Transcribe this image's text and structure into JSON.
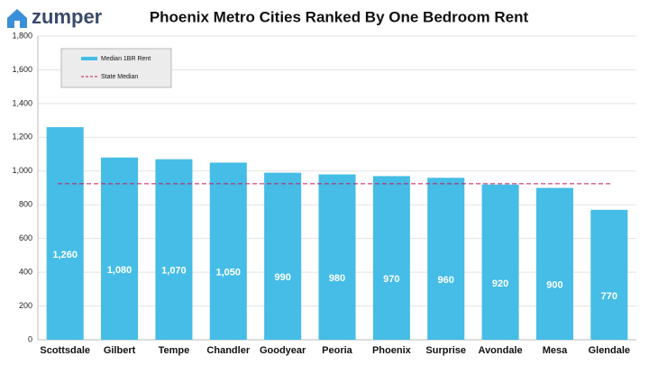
{
  "logo": "zumper",
  "chart_data": {
    "type": "bar",
    "title": "Phoenix Metro Cities Ranked By One Bedroom Rent",
    "categories": [
      "Scottsdale",
      "Gilbert",
      "Tempe",
      "Chandler",
      "Goodyear",
      "Peoria",
      "Phoenix",
      "Surprise",
      "Avondale",
      "Mesa",
      "Glendale"
    ],
    "series": [
      {
        "name": "Median 1BR Rent",
        "color": "#45bde6",
        "values": [
          1260,
          1080,
          1070,
          1050,
          990,
          980,
          970,
          960,
          920,
          900,
          770
        ],
        "value_labels": [
          "1,260",
          "1,080",
          "1,070",
          "1,050",
          "990",
          "980",
          "970",
          "960",
          "920",
          "900",
          "770"
        ]
      }
    ],
    "reference_line": {
      "name": "State Median",
      "value": 925,
      "color": "#c2185b"
    },
    "ylim": [
      0,
      1800
    ],
    "yticks": [
      0,
      200,
      400,
      600,
      800,
      {
        "value": 1000,
        "label": "1,000"
      },
      {
        "value": 1200,
        "label": "1,200"
      },
      {
        "value": 1400,
        "label": "1,400"
      },
      {
        "value": 1600,
        "label": "1,600"
      },
      {
        "value": 1800,
        "label": "1,800"
      }
    ],
    "grid": true
  }
}
